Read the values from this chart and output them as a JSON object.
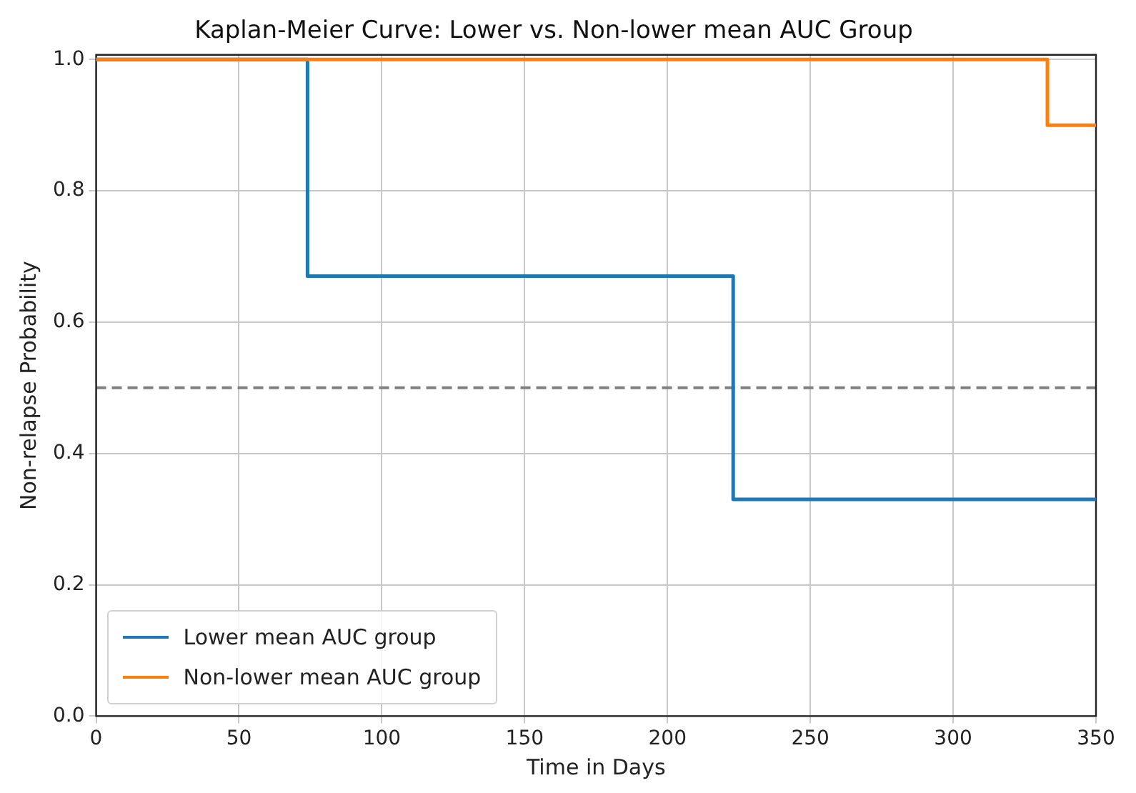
{
  "chart_data": {
    "type": "step",
    "title": "Kaplan-Meier Curve: Lower vs. Non-lower mean AUC Group",
    "xlabel": "Time in Days",
    "ylabel": "Non-relapse Probability",
    "series": [
      {
        "name": "Lower mean AUC group",
        "color": "#1f77b4",
        "x": [
          0,
          74,
          223,
          350
        ],
        "values": [
          1.0,
          0.67,
          0.33,
          0.33
        ]
      },
      {
        "name": "Non-lower mean AUC group",
        "color": "#ff7f0e",
        "x": [
          0,
          333,
          350
        ],
        "values": [
          1.0,
          0.9,
          0.9
        ]
      }
    ],
    "xlim": [
      0,
      350
    ],
    "xticks": [
      0,
      50,
      100,
      150,
      200,
      250,
      300,
      350
    ],
    "ylim": [
      0,
      1.007
    ],
    "yticks": [
      {
        "value": 0,
        "label": "0.0"
      },
      {
        "value": 0.2,
        "label": "0.2"
      },
      {
        "value": 0.4,
        "label": "0.4"
      },
      {
        "value": 0.6,
        "label": "0.6"
      },
      {
        "value": 0.8,
        "label": "0.8"
      },
      {
        "value": 1,
        "label": "1.0"
      }
    ],
    "ref_lines": [
      {
        "axis": "y",
        "value": 0.5,
        "color": "#808080",
        "line_style": "dashed"
      }
    ],
    "grid": true,
    "legend": "bottom left",
    "line_style": "solid",
    "marker": "none"
  }
}
